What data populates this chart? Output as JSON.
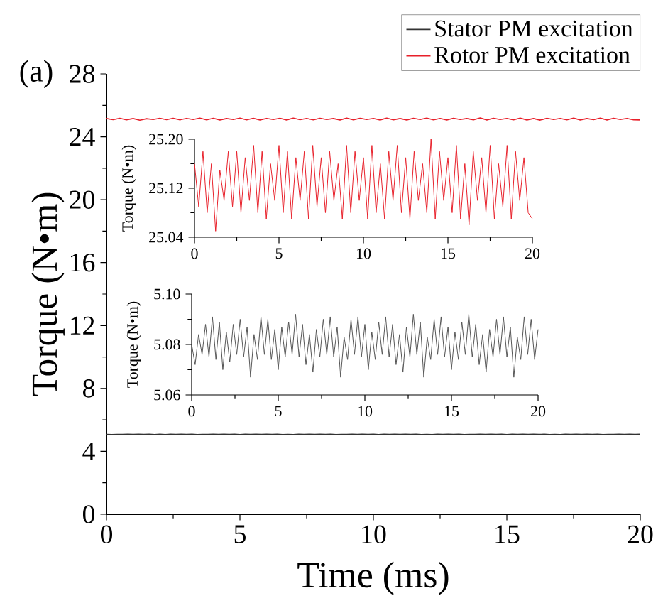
{
  "chart_data": [
    {
      "type": "line",
      "xlabel": "Time (ms)",
      "ylabel": "Torque (N•m)",
      "annotations": [
        "(a)"
      ],
      "legend": "top right",
      "xlim": [
        0,
        20
      ],
      "ylim": [
        0,
        28
      ],
      "xticks": [
        0,
        5,
        10,
        15,
        20
      ],
      "yticks": [
        0,
        4,
        8,
        12,
        16,
        20,
        24,
        28
      ],
      "series": [
        {
          "name": "Stator PM excitation",
          "color": "#333333",
          "x": [
            0,
            0.2,
            0.4,
            0.6,
            0.8,
            1,
            1.2,
            1.4,
            1.6,
            1.8,
            2,
            2.2,
            2.4,
            2.6,
            2.8,
            3,
            3.2,
            3.4,
            3.6,
            3.8,
            4,
            4.2,
            4.4,
            4.6,
            4.8,
            5,
            5.2,
            5.4,
            5.6,
            5.8,
            6,
            6.2,
            6.4,
            6.6,
            6.8,
            7,
            7.2,
            7.4,
            7.6,
            7.8,
            8,
            8.2,
            8.4,
            8.6,
            8.8,
            9,
            9.2,
            9.4,
            9.6,
            9.8,
            10,
            10.2,
            10.4,
            10.6,
            10.8,
            11,
            11.2,
            11.4,
            11.6,
            11.8,
            12,
            12.2,
            12.4,
            12.6,
            12.8,
            13,
            13.2,
            13.4,
            13.6,
            13.8,
            14,
            14.2,
            14.4,
            14.6,
            14.8,
            15,
            15.2,
            15.4,
            15.6,
            15.8,
            16,
            16.2,
            16.4,
            16.6,
            16.8,
            17,
            17.2,
            17.4,
            17.6,
            17.8,
            18,
            18.2,
            18.4,
            18.6,
            18.8,
            19,
            19.2,
            19.4,
            19.6,
            19.8,
            20
          ],
          "values": [
            5.08,
            5.072,
            5.084,
            5.076,
            5.088,
            5.075,
            5.091,
            5.074,
            5.089,
            5.07,
            5.085,
            5.073,
            5.088,
            5.076,
            5.09,
            5.075,
            5.087,
            5.067,
            5.084,
            5.074,
            5.091,
            5.076,
            5.09,
            5.074,
            5.086,
            5.07,
            5.087,
            5.075,
            5.089,
            5.076,
            5.092,
            5.075,
            5.088,
            5.072,
            5.084,
            5.069,
            5.086,
            5.075,
            5.09,
            5.076,
            5.091,
            5.075,
            5.087,
            5.067,
            5.083,
            5.074,
            5.09,
            5.076,
            5.091,
            5.075,
            5.088,
            5.07,
            5.085,
            5.074,
            5.089,
            5.076,
            5.091,
            5.075,
            5.088,
            5.072,
            5.084,
            5.069,
            5.087,
            5.075,
            5.092,
            5.076,
            5.089,
            5.067,
            5.083,
            5.074,
            5.09,
            5.076,
            5.091,
            5.075,
            5.087,
            5.07,
            5.085,
            5.074,
            5.089,
            5.076,
            5.092,
            5.075,
            5.088,
            5.072,
            5.084,
            5.069,
            5.086,
            5.075,
            5.09,
            5.076,
            5.091,
            5.075,
            5.087,
            5.067,
            5.083,
            5.074,
            5.091,
            5.076,
            5.09,
            5.074,
            5.086
          ]
        },
        {
          "name": "Rotor PM excitation",
          "color": "#e8202a",
          "x": [
            0,
            0.25,
            0.5,
            0.75,
            1,
            1.25,
            1.5,
            1.75,
            2,
            2.25,
            2.5,
            2.75,
            3,
            3.25,
            3.5,
            3.75,
            4,
            4.25,
            4.5,
            4.75,
            5,
            5.25,
            5.5,
            5.75,
            6,
            6.25,
            6.5,
            6.75,
            7,
            7.25,
            7.5,
            7.75,
            8,
            8.25,
            8.5,
            8.75,
            9,
            9.25,
            9.5,
            9.75,
            10,
            10.25,
            10.5,
            10.75,
            11,
            11.25,
            11.5,
            11.75,
            12,
            12.25,
            12.5,
            12.75,
            13,
            13.25,
            13.5,
            13.75,
            14,
            14.25,
            14.5,
            14.75,
            15,
            15.25,
            15.5,
            15.75,
            16,
            16.25,
            16.5,
            16.75,
            17,
            17.25,
            17.5,
            17.75,
            18,
            18.25,
            18.5,
            18.75,
            19,
            19.25,
            19.5,
            19.75,
            20
          ],
          "values": [
            25.16,
            25.09,
            25.18,
            25.08,
            25.16,
            25.05,
            25.15,
            25.1,
            25.18,
            25.09,
            25.18,
            25.08,
            25.17,
            25.1,
            25.19,
            25.08,
            25.18,
            25.07,
            25.16,
            25.1,
            25.19,
            25.08,
            25.18,
            25.07,
            25.17,
            25.1,
            25.18,
            25.07,
            25.19,
            25.09,
            25.17,
            25.08,
            25.18,
            25.1,
            25.16,
            25.07,
            25.19,
            25.08,
            25.18,
            25.1,
            25.17,
            25.07,
            25.19,
            25.08,
            25.16,
            25.07,
            25.18,
            25.1,
            25.19,
            25.08,
            25.17,
            25.07,
            25.18,
            25.1,
            25.16,
            25.08,
            25.2,
            25.07,
            25.18,
            25.1,
            25.17,
            25.08,
            25.19,
            25.07,
            25.16,
            25.06,
            25.18,
            25.1,
            25.17,
            25.08,
            25.19,
            25.07,
            25.16,
            25.09,
            25.19,
            25.07,
            25.18,
            25.1,
            25.17,
            25.08,
            25.07
          ]
        }
      ]
    },
    {
      "type": "line",
      "ylabel": "Torque (N•m)",
      "xlim": [
        0,
        20
      ],
      "ylim": [
        25.04,
        25.2
      ],
      "xticks": [
        0,
        5,
        10,
        15,
        20
      ],
      "yticks": [
        {
          "value": 25.04,
          "label": "25.04"
        },
        {
          "value": 25.12,
          "label": "25.12"
        },
        {
          "value": 25.2,
          "label": "25.20"
        }
      ],
      "series": [
        {
          "color": "#e8202a",
          "x": [
            0,
            0.25,
            0.5,
            0.75,
            1,
            1.25,
            1.5,
            1.75,
            2,
            2.25,
            2.5,
            2.75,
            3,
            3.25,
            3.5,
            3.75,
            4,
            4.25,
            4.5,
            4.75,
            5,
            5.25,
            5.5,
            5.75,
            6,
            6.25,
            6.5,
            6.75,
            7,
            7.25,
            7.5,
            7.75,
            8,
            8.25,
            8.5,
            8.75,
            9,
            9.25,
            9.5,
            9.75,
            10,
            10.25,
            10.5,
            10.75,
            11,
            11.25,
            11.5,
            11.75,
            12,
            12.25,
            12.5,
            12.75,
            13,
            13.25,
            13.5,
            13.75,
            14,
            14.25,
            14.5,
            14.75,
            15,
            15.25,
            15.5,
            15.75,
            16,
            16.25,
            16.5,
            16.75,
            17,
            17.25,
            17.5,
            17.75,
            18,
            18.25,
            18.5,
            18.75,
            19,
            19.25,
            19.5,
            19.75,
            20
          ],
          "values": [
            25.16,
            25.09,
            25.18,
            25.08,
            25.16,
            25.05,
            25.15,
            25.1,
            25.18,
            25.09,
            25.18,
            25.08,
            25.17,
            25.1,
            25.19,
            25.08,
            25.18,
            25.07,
            25.16,
            25.1,
            25.19,
            25.08,
            25.18,
            25.07,
            25.17,
            25.1,
            25.18,
            25.07,
            25.19,
            25.09,
            25.17,
            25.08,
            25.18,
            25.1,
            25.16,
            25.07,
            25.19,
            25.08,
            25.18,
            25.1,
            25.17,
            25.07,
            25.19,
            25.08,
            25.16,
            25.07,
            25.18,
            25.1,
            25.19,
            25.08,
            25.17,
            25.07,
            25.18,
            25.1,
            25.16,
            25.08,
            25.2,
            25.07,
            25.18,
            25.1,
            25.17,
            25.08,
            25.19,
            25.07,
            25.16,
            25.06,
            25.18,
            25.1,
            25.17,
            25.08,
            25.19,
            25.07,
            25.16,
            25.09,
            25.19,
            25.07,
            25.18,
            25.1,
            25.17,
            25.08,
            25.07
          ]
        }
      ]
    },
    {
      "type": "line",
      "ylabel": "Torque (N•m)",
      "xlim": [
        0,
        20
      ],
      "ylim": [
        5.06,
        5.1
      ],
      "xticks": [
        0,
        5,
        10,
        15,
        20
      ],
      "yticks": [
        5.06,
        5.08,
        {
          "value": 5.1,
          "label": "5.10"
        }
      ],
      "series": [
        {
          "color": "#555555",
          "x": [
            0,
            0.2,
            0.4,
            0.6,
            0.8,
            1,
            1.2,
            1.4,
            1.6,
            1.8,
            2,
            2.2,
            2.4,
            2.6,
            2.8,
            3,
            3.2,
            3.4,
            3.6,
            3.8,
            4,
            4.2,
            4.4,
            4.6,
            4.8,
            5,
            5.2,
            5.4,
            5.6,
            5.8,
            6,
            6.2,
            6.4,
            6.6,
            6.8,
            7,
            7.2,
            7.4,
            7.6,
            7.8,
            8,
            8.2,
            8.4,
            8.6,
            8.8,
            9,
            9.2,
            9.4,
            9.6,
            9.8,
            10,
            10.2,
            10.4,
            10.6,
            10.8,
            11,
            11.2,
            11.4,
            11.6,
            11.8,
            12,
            12.2,
            12.4,
            12.6,
            12.8,
            13,
            13.2,
            13.4,
            13.6,
            13.8,
            14,
            14.2,
            14.4,
            14.6,
            14.8,
            15,
            15.2,
            15.4,
            15.6,
            15.8,
            16,
            16.2,
            16.4,
            16.6,
            16.8,
            17,
            17.2,
            17.4,
            17.6,
            17.8,
            18,
            18.2,
            18.4,
            18.6,
            18.8,
            19,
            19.2,
            19.4,
            19.6,
            19.8,
            20
          ],
          "values": [
            5.08,
            5.072,
            5.084,
            5.076,
            5.088,
            5.075,
            5.091,
            5.074,
            5.089,
            5.07,
            5.085,
            5.073,
            5.088,
            5.076,
            5.09,
            5.075,
            5.087,
            5.067,
            5.084,
            5.074,
            5.091,
            5.076,
            5.09,
            5.074,
            5.086,
            5.07,
            5.087,
            5.075,
            5.089,
            5.076,
            5.092,
            5.075,
            5.088,
            5.072,
            5.084,
            5.069,
            5.086,
            5.075,
            5.09,
            5.076,
            5.091,
            5.075,
            5.087,
            5.067,
            5.083,
            5.074,
            5.09,
            5.076,
            5.091,
            5.075,
            5.088,
            5.07,
            5.085,
            5.074,
            5.089,
            5.076,
            5.091,
            5.075,
            5.088,
            5.072,
            5.084,
            5.069,
            5.087,
            5.075,
            5.092,
            5.076,
            5.089,
            5.067,
            5.083,
            5.074,
            5.09,
            5.076,
            5.091,
            5.075,
            5.087,
            5.07,
            5.085,
            5.074,
            5.089,
            5.076,
            5.092,
            5.075,
            5.088,
            5.072,
            5.084,
            5.069,
            5.086,
            5.075,
            5.09,
            5.076,
            5.091,
            5.075,
            5.087,
            5.067,
            5.083,
            5.074,
            5.091,
            5.076,
            5.09,
            5.074,
            5.086
          ]
        }
      ]
    }
  ]
}
